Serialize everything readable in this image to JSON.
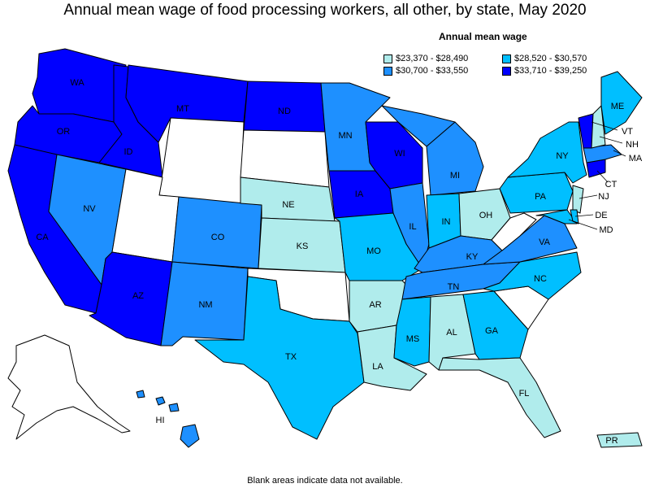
{
  "title": "Annual mean wage of food processing workers, all other, by state, May 2020",
  "legend": {
    "title": "Annual mean wage",
    "items": [
      {
        "label": "$23,370 - $28,490",
        "color": "#b0ecec"
      },
      {
        "label": "$28,520 - $30,570",
        "color": "#00bfff"
      },
      {
        "label": "$30,700 - $33,550",
        "color": "#1e90ff"
      },
      {
        "label": "$33,710 - $39,250",
        "color": "#0000ff"
      }
    ]
  },
  "footnote": "Blank areas indicate data not available.",
  "colors": {
    "tier1": "#b0ecec",
    "tier2": "#00bfff",
    "tier3": "#1e90ff",
    "tier4": "#0000ff",
    "no_data": "#ffffff"
  },
  "states": {
    "WA": "WA",
    "OR": "OR",
    "CA": "CA",
    "ID": "ID",
    "NV": "NV",
    "MT": "MT",
    "AZ": "AZ",
    "CO": "CO",
    "NM": "NM",
    "ND": "ND",
    "NE": "NE",
    "KS": "KS",
    "TX": "TX",
    "MN": "MN",
    "IA": "IA",
    "MO": "MO",
    "AR": "AR",
    "LA": "LA",
    "WI": "WI",
    "IL": "IL",
    "MI": "MI",
    "IN": "IN",
    "OH": "OH",
    "KY": "KY",
    "TN": "TN",
    "MS": "MS",
    "AL": "AL",
    "GA": "GA",
    "FL": "FL",
    "NC": "NC",
    "VA": "VA",
    "PA": "PA",
    "NY": "NY",
    "ME": "ME",
    "VT": "VT",
    "NH": "NH",
    "MA": "MA",
    "CT": "CT",
    "NJ": "NJ",
    "DE": "DE",
    "MD": "MD",
    "HI": "HI",
    "PR": "PR"
  }
}
